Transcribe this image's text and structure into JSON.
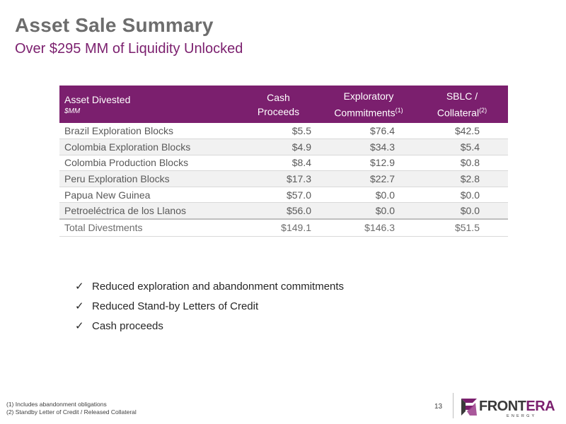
{
  "header": {
    "title": "Asset Sale Summary",
    "subtitle": "Over $295 MM of Liquidity Unlocked"
  },
  "table": {
    "columns": [
      {
        "label": "Asset Divested",
        "sub": "$MM"
      },
      {
        "label1": "Cash",
        "label2": "Proceeds"
      },
      {
        "label1": "Exploratory",
        "label2": "Commitments",
        "sup": "(1)"
      },
      {
        "label1": "SBLC /",
        "label2": "Collateral",
        "sup": "(2)"
      }
    ],
    "rows": [
      [
        "Brazil Exploration Blocks",
        "$5.5",
        "$76.4",
        "$42.5"
      ],
      [
        "Colombia Exploration Blocks",
        "$4.9",
        "$34.3",
        "$5.4"
      ],
      [
        "Colombia Production Blocks",
        "$8.4",
        "$12.9",
        "$0.8"
      ],
      [
        "Peru Exploration Blocks",
        "$17.3",
        "$22.7",
        "$2.8"
      ],
      [
        "Papua New Guinea",
        "$57.0",
        "$0.0",
        "$0.0"
      ],
      [
        "Petroeléctrica de los Llanos",
        "$56.0",
        "$0.0",
        "$0.0"
      ]
    ],
    "total": [
      "Total Divestments",
      "$149.1",
      "$146.3",
      "$51.5"
    ]
  },
  "bullets": [
    "Reduced exploration and abandonment commitments",
    "Reduced Stand-by Letters of Credit",
    "Cash proceeds"
  ],
  "footnotes": [
    "(1) Includes abandonment obligations",
    "(2) Standby Letter of Credit / Released Collateral"
  ],
  "page_number": "13",
  "logo": {
    "word_main": "FRONT",
    "word_accent": "ERA",
    "tagline": "ENERGY",
    "icon": "frontera-logo-mark"
  },
  "colors": {
    "accent": "#7b1f6e",
    "title_gray": "#6d6d6d",
    "row_alt": "#f1f1f1"
  }
}
